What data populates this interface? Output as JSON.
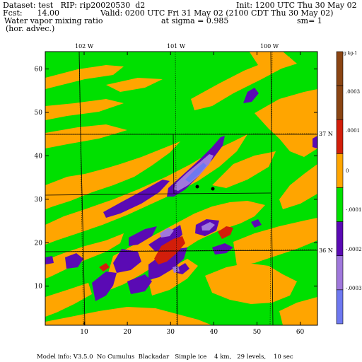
{
  "header": {
    "dataset_line": "Dataset: test   RIP: rip20020530  d2",
    "init_line": "Init: 1200 UTC Thu 30 May 02",
    "fcst_line": "Fcst:      14.00",
    "valid_line": "Valid: 0200 UTC Fri 31 May 02 (2100 CDT Thu 30 May 02)",
    "field_line": "Water vapor mixing ratio",
    "sigma_line": "at sigma = 0.985",
    "sm_line": "sm= 1",
    "advec_line": "(hor. advec.)"
  },
  "footer": {
    "model_info": "Model info: V3.5.0  No Cumulus  Blackadar   Simple ice    4 km,   29 levels,    10 sec"
  },
  "map": {
    "x_ticks": [
      "10",
      "20",
      "30",
      "40",
      "50",
      "60"
    ],
    "y_ticks": [
      "10",
      "20",
      "30",
      "40",
      "50",
      "60"
    ],
    "x_range": [
      1,
      64
    ],
    "y_range": [
      1,
      64
    ],
    "longitude_labels": [
      "102 W",
      "101 W",
      "100 W"
    ],
    "latitude_labels": [
      "37 N",
      "36 N"
    ],
    "colors": {
      "green": "#00e000",
      "orange": "#ffa500",
      "purple": "#5a0ab4",
      "lavender": "#a078dc",
      "blue": "#6e78f0",
      "red": "#d21e0a",
      "brown": "#8b4513"
    }
  },
  "colorbar": {
    "unit_label": "g kg-1",
    "labels": [
      ".0003",
      ".0001",
      "0",
      "-.0001",
      "-.0002",
      "-.0003"
    ],
    "bands": [
      {
        "color": "#8b4513"
      },
      {
        "color": "#8b4513"
      },
      {
        "color": "#d21e0a"
      },
      {
        "color": "#ffa500"
      },
      {
        "color": "#00e000"
      },
      {
        "color": "#5a0ab4"
      },
      {
        "color": "#a078dc"
      },
      {
        "color": "#6e78f0"
      }
    ]
  }
}
